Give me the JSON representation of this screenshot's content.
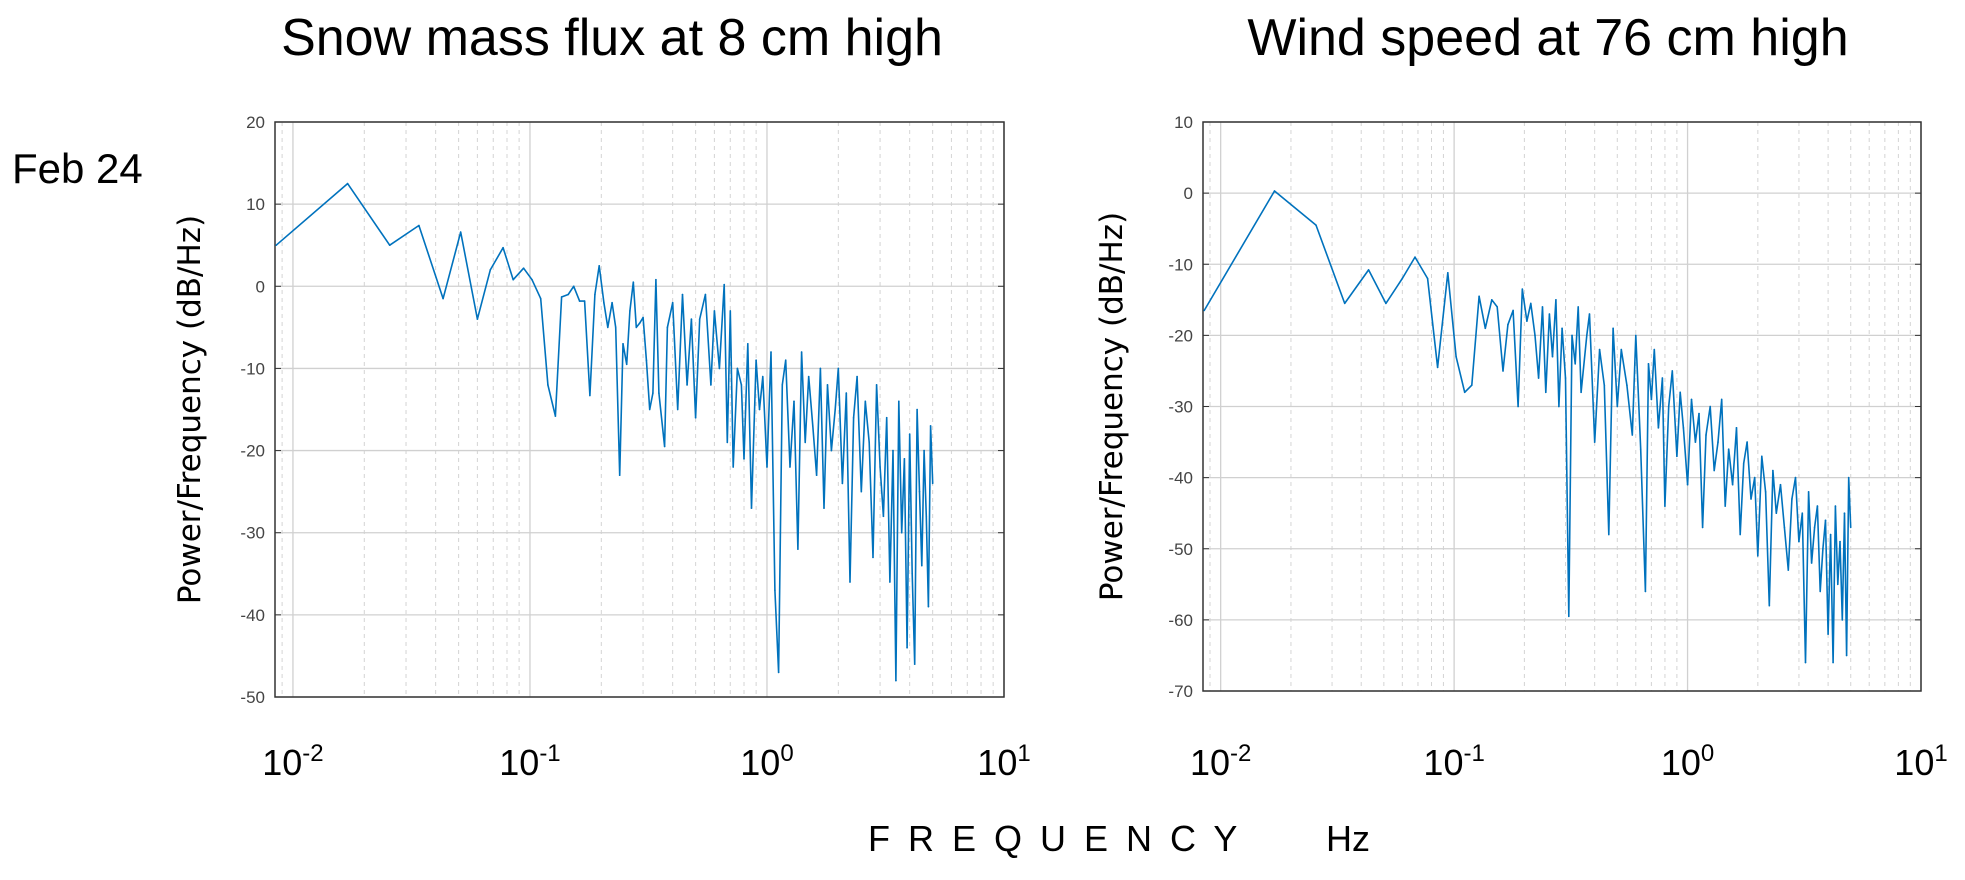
{
  "row_label": "Feb 24",
  "shared_xlabel": "F R E Q U E N C Y",
  "shared_xunit": "Hz",
  "line_color": "#0072bd",
  "chart_data": [
    {
      "type": "line",
      "title": "Snow mass flux at 8 cm high",
      "ylabel": "Power/Frequency (dB/Hz)",
      "xscale": "log",
      "xlim": [
        0.0084,
        10
      ],
      "ylim": [
        -50,
        20
      ],
      "yticks": [
        "20",
        "10",
        "0",
        "-10",
        "-20",
        "-30",
        "-40",
        "-50"
      ],
      "xticks": [
        {
          "base": "10",
          "exp": "-2"
        },
        {
          "base": "10",
          "exp": "-1"
        },
        {
          "base": "10",
          "exp": "0"
        },
        {
          "base": "10",
          "exp": "1"
        }
      ],
      "grid": true,
      "x": [
        0.0085,
        0.017,
        0.0256,
        0.034,
        0.043,
        0.051,
        0.06,
        0.068,
        0.077,
        0.085,
        0.094,
        0.102,
        0.111,
        0.119,
        0.128,
        0.136,
        0.145,
        0.153,
        0.162,
        0.17,
        0.179,
        0.188,
        0.196,
        0.205,
        0.213,
        0.222,
        0.23,
        0.239,
        0.247,
        0.256,
        0.264,
        0.273,
        0.281,
        0.29,
        0.3,
        0.31,
        0.32,
        0.33,
        0.34,
        0.35,
        0.37,
        0.38,
        0.4,
        0.42,
        0.44,
        0.46,
        0.48,
        0.5,
        0.52,
        0.55,
        0.58,
        0.6,
        0.63,
        0.66,
        0.68,
        0.7,
        0.72,
        0.75,
        0.78,
        0.8,
        0.83,
        0.86,
        0.9,
        0.93,
        0.96,
        1.0,
        1.04,
        1.08,
        1.12,
        1.16,
        1.2,
        1.25,
        1.3,
        1.35,
        1.4,
        1.45,
        1.5,
        1.56,
        1.62,
        1.68,
        1.74,
        1.8,
        1.87,
        1.94,
        2.0,
        2.08,
        2.16,
        2.24,
        2.32,
        2.4,
        2.5,
        2.6,
        2.7,
        2.8,
        2.9,
        3.0,
        3.1,
        3.2,
        3.3,
        3.4,
        3.5,
        3.6,
        3.7,
        3.8,
        3.9,
        4.0,
        4.1,
        4.2,
        4.3,
        4.4,
        4.5,
        4.6,
        4.7,
        4.8,
        4.9,
        5.0
      ],
      "y": [
        5,
        12.5,
        5,
        7.4,
        -1.5,
        6.6,
        -4,
        2,
        4.7,
        0.8,
        2.2,
        0.8,
        -1.5,
        -12,
        -15.8,
        -1.3,
        -1,
        0,
        -1.8,
        -1.8,
        -13.3,
        -1,
        2.5,
        -2,
        -5,
        -2,
        -5,
        -23,
        -7,
        -9.5,
        -3,
        0.5,
        -5,
        -4.5,
        -3.8,
        -9,
        -15,
        -13,
        0.8,
        -13,
        -19.5,
        -5,
        -2,
        -15,
        -1,
        -12,
        -4,
        -16,
        -4,
        -1,
        -12,
        -3,
        -10,
        0.2,
        -19,
        -3,
        -22,
        -10,
        -12,
        -21,
        -7,
        -27,
        -9,
        -15,
        -11,
        -22,
        -8,
        -37,
        -47,
        -12,
        -9,
        -22,
        -14,
        -32,
        -8,
        -19,
        -11,
        -17,
        -23,
        -10,
        -27,
        -12,
        -20,
        -15,
        -10,
        -24,
        -13,
        -36,
        -16,
        -11,
        -25,
        -14,
        -19,
        -33,
        -12,
        -22,
        -28,
        -16,
        -36,
        -20,
        -48,
        -14,
        -30,
        -21,
        -44,
        -18,
        -35,
        -46,
        -15,
        -25,
        -34,
        -20,
        -28,
        -39,
        -17,
        -24
      ]
    },
    {
      "type": "line",
      "title": "Wind speed at 76 cm high",
      "ylabel": "Power/Frequency (dB/Hz)",
      "xscale": "log",
      "xlim": [
        0.0084,
        10
      ],
      "ylim": [
        -70,
        10
      ],
      "yticks": [
        "10",
        "0",
        "-10",
        "-20",
        "-30",
        "-40",
        "-50",
        "-60",
        "-70"
      ],
      "xticks": [
        {
          "base": "10",
          "exp": "-2"
        },
        {
          "base": "10",
          "exp": "-1"
        },
        {
          "base": "10",
          "exp": "0"
        },
        {
          "base": "10",
          "exp": "1"
        }
      ],
      "grid": true,
      "x": [
        0.0085,
        0.017,
        0.0256,
        0.034,
        0.043,
        0.051,
        0.06,
        0.068,
        0.077,
        0.085,
        0.094,
        0.102,
        0.111,
        0.119,
        0.128,
        0.136,
        0.145,
        0.153,
        0.162,
        0.17,
        0.179,
        0.188,
        0.196,
        0.205,
        0.213,
        0.222,
        0.23,
        0.239,
        0.247,
        0.256,
        0.264,
        0.273,
        0.281,
        0.29,
        0.3,
        0.31,
        0.32,
        0.33,
        0.34,
        0.35,
        0.37,
        0.38,
        0.4,
        0.42,
        0.44,
        0.46,
        0.48,
        0.5,
        0.52,
        0.55,
        0.58,
        0.6,
        0.63,
        0.66,
        0.68,
        0.7,
        0.72,
        0.75,
        0.78,
        0.8,
        0.83,
        0.86,
        0.9,
        0.93,
        0.96,
        1.0,
        1.04,
        1.08,
        1.12,
        1.16,
        1.2,
        1.25,
        1.3,
        1.35,
        1.4,
        1.45,
        1.5,
        1.56,
        1.62,
        1.68,
        1.74,
        1.8,
        1.87,
        1.94,
        2.0,
        2.08,
        2.16,
        2.24,
        2.32,
        2.4,
        2.5,
        2.6,
        2.7,
        2.8,
        2.9,
        3.0,
        3.1,
        3.2,
        3.3,
        3.4,
        3.5,
        3.6,
        3.7,
        3.8,
        3.9,
        4.0,
        4.1,
        4.2,
        4.3,
        4.4,
        4.5,
        4.6,
        4.7,
        4.8,
        4.9,
        5.0
      ],
      "y": [
        -16.5,
        0.3,
        -4.5,
        -15.5,
        -10.8,
        -15.5,
        -12,
        -9,
        -12,
        -24.5,
        -11.2,
        -23,
        -28,
        -27,
        -14.5,
        -19,
        -15,
        -16,
        -25,
        -18.5,
        -16.5,
        -30,
        -13.5,
        -18,
        -15.5,
        -20,
        -26,
        -16,
        -28,
        -17,
        -23,
        -15,
        -30,
        -19,
        -26,
        -59.5,
        -20,
        -24,
        -16,
        -28,
        -20,
        -17,
        -35,
        -22,
        -27,
        -48,
        -19,
        -30,
        -22,
        -27,
        -34,
        -20,
        -36,
        -56,
        -24,
        -29,
        -22,
        -33,
        -26,
        -44,
        -30,
        -25,
        -37,
        -28,
        -33,
        -41,
        -29,
        -35,
        -31,
        -47,
        -34,
        -30,
        -39,
        -35,
        -29,
        -44,
        -36,
        -41,
        -33,
        -48,
        -38,
        -35,
        -43,
        -40,
        -51,
        -37,
        -42,
        -58,
        -39,
        -45,
        -41,
        -47,
        -53,
        -43,
        -40,
        -49,
        -45,
        -66,
        -42,
        -52,
        -47,
        -44,
        -56,
        -50,
        -46,
        -62,
        -48,
        -66,
        -44,
        -55,
        -49,
        -60,
        -45,
        -65,
        -40,
        -47
      ]
    }
  ]
}
